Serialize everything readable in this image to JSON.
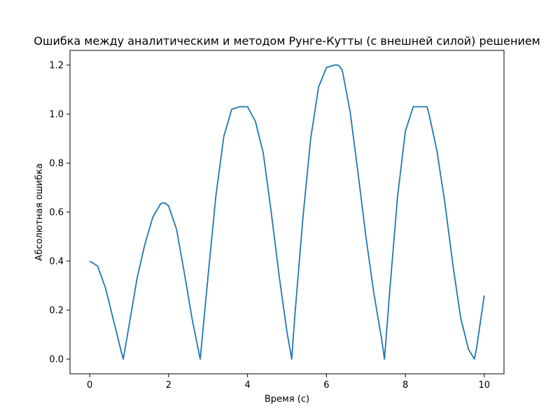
{
  "chart_data": {
    "type": "line",
    "title": "Ошибка между аналитическим и методом Рунге-Кутты (с внешней силой) решением",
    "xlabel": "Время (с)",
    "ylabel": "Абсолютная ошибка",
    "xlim": [
      -0.5,
      10.5
    ],
    "ylim": [
      -0.06,
      1.26
    ],
    "xticks": [
      0,
      2,
      4,
      6,
      8,
      10
    ],
    "xtick_labels": [
      "0",
      "2",
      "4",
      "6",
      "8",
      "10"
    ],
    "yticks": [
      0.0,
      0.2,
      0.4,
      0.6,
      0.8,
      1.0,
      1.2
    ],
    "ytick_labels": [
      "0.0",
      "0.2",
      "0.4",
      "0.6",
      "0.8",
      "1.0",
      "1.2"
    ],
    "grid": false,
    "legend": "none",
    "colors": {
      "line": "#1f77b4",
      "axes": "#000000",
      "background": "#ffffff"
    },
    "series": [
      {
        "x": [
          0,
          0.2,
          0.4,
          0.6,
          0.8,
          0.85,
          1.0,
          1.2,
          1.4,
          1.6,
          1.8,
          1.9,
          2.0,
          2.2,
          2.4,
          2.6,
          2.8,
          3.0,
          3.2,
          3.4,
          3.6,
          3.8,
          4.0,
          4.2,
          4.4,
          4.6,
          4.8,
          5.0,
          5.12,
          5.2,
          5.4,
          5.6,
          5.8,
          6.0,
          6.2,
          6.3,
          6.4,
          6.6,
          6.8,
          7.0,
          7.2,
          7.4,
          7.47,
          7.6,
          7.8,
          8.0,
          8.2,
          8.4,
          8.55,
          8.6,
          8.8,
          9.0,
          9.2,
          9.4,
          9.6,
          9.75,
          9.8,
          10.0
        ],
        "y": [
          0.4,
          0.38,
          0.29,
          0.16,
          0.03,
          0.0,
          0.14,
          0.33,
          0.47,
          0.58,
          0.635,
          0.638,
          0.625,
          0.53,
          0.35,
          0.16,
          0.0,
          0.34,
          0.67,
          0.91,
          1.02,
          1.03,
          1.03,
          0.97,
          0.84,
          0.6,
          0.34,
          0.11,
          0.0,
          0.18,
          0.57,
          0.9,
          1.11,
          1.19,
          1.2,
          1.2,
          1.18,
          1.01,
          0.76,
          0.5,
          0.27,
          0.08,
          0.0,
          0.27,
          0.66,
          0.93,
          1.03,
          1.03,
          1.03,
          1.0,
          0.85,
          0.64,
          0.39,
          0.17,
          0.04,
          0.0,
          0.04,
          0.26
        ]
      }
    ]
  }
}
